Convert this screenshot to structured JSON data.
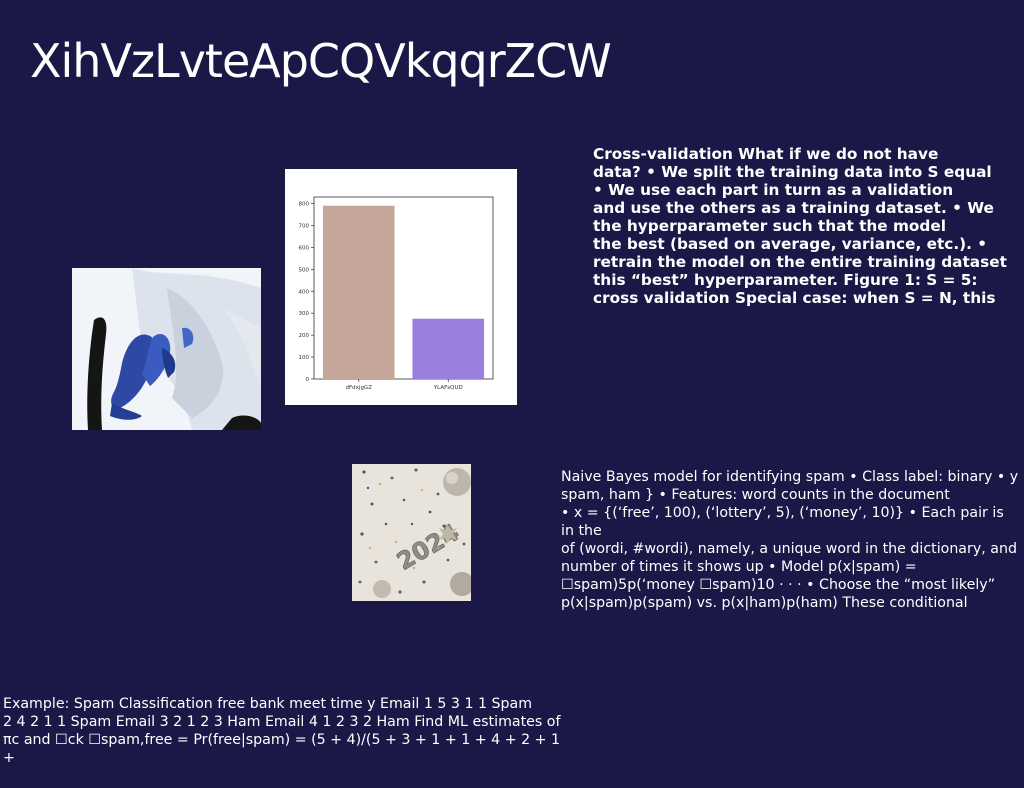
{
  "slide": {
    "title": "XihVzLvteApCQVkqqrZCW",
    "text_block_1": "Cross-validation What if we do not have\ndata? • We split the training data into S equal\n• We use each part in turn as a validation\nand use the others as a training dataset. • We\nthe hyperparameter such that the model\nthe best (based on average, variance, etc.). •\nretrain the model on the entire training dataset\nthis “best” hyperparameter. Figure 1: S = 5:\ncross validation Special case: when S = N, this",
    "text_block_2": "Naive Bayes model for identifying spam • Class label: binary • y\nspam, ham } • Features: word counts in the document\n• x = {(‘free’, 100), (‘lottery’, 5), (‘money’, 10)} • Each pair is in the\nof (wordi, #wordi), namely, a unique word in the dictionary, and\nnumber of times it shows up • Model p(x|spam) =\n☐spam)5p(‘money ☐spam)10 · · · • Choose the “most likely”\np(x|spam)p(spam) vs. p(x|ham)p(ham) These conditional",
    "text_block_3": "Example: Spam Classification free bank meet time y Email 1 5 3 1 1 Spam\n2 4 2 1 1 Spam Email 3 2 1 2 3 Ham Email 4 1 2 3 2 Ham Find ML estimates of\nπc and ☐ck ☐spam,free = Pr(free|spam) = (5 + 4)/(5 + 3 + 1 + 1 + 4 + 2 + 1 +"
  },
  "chart_data": {
    "type": "bar",
    "categories": [
      "dFdxjgGZ",
      "YLAFsQUD"
    ],
    "values": [
      790,
      275
    ],
    "colors": [
      "#c4a69a",
      "#9a7fdd"
    ],
    "yticks": [
      0,
      100,
      200,
      300,
      400,
      500,
      600,
      700,
      800
    ],
    "ylim": [
      0,
      830
    ],
    "title": "",
    "xlabel": "",
    "ylabel": "",
    "grid": false
  }
}
